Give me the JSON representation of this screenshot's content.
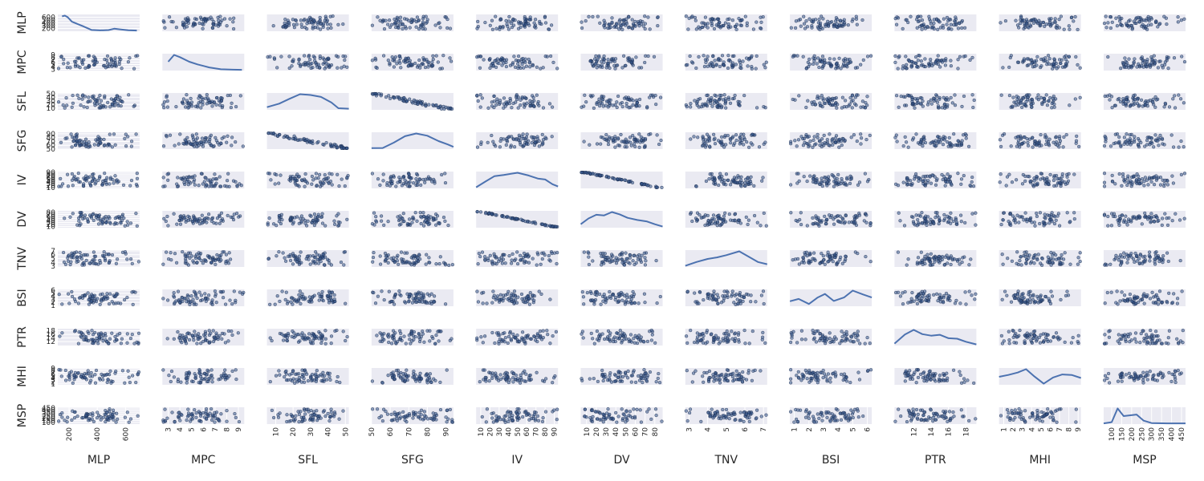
{
  "chart_data": {
    "type": "scatter",
    "kind": "scatter-matrix",
    "diagonal": "kde",
    "grid": true,
    "variables": [
      {
        "name": "MLP",
        "ylim": [
          100,
          700
        ],
        "yticks": [
          200,
          300,
          400,
          500,
          600
        ],
        "xlim": [
          120,
          700
        ],
        "xticks": [
          200,
          400,
          600
        ]
      },
      {
        "name": "MPC",
        "ylim": [
          2.5,
          9.5
        ],
        "yticks": [
          3,
          4,
          5,
          6,
          7,
          8,
          9
        ],
        "xlim": [
          2.5,
          9.5
        ],
        "xticks": [
          3,
          4,
          5,
          6,
          7,
          8,
          9
        ]
      },
      {
        "name": "SFL",
        "ylim": [
          5,
          52
        ],
        "yticks": [
          10,
          20,
          30,
          40,
          50
        ],
        "xlim": [
          5,
          52
        ],
        "xticks": [
          10,
          20,
          30,
          40,
          50
        ]
      },
      {
        "name": "SFG",
        "ylim": [
          50,
          94
        ],
        "yticks": [
          50,
          60,
          70,
          80,
          90
        ],
        "xlim": [
          50,
          94
        ],
        "xticks": [
          50,
          60,
          70,
          80,
          90
        ]
      },
      {
        "name": "IV",
        "ylim": [
          5,
          94
        ],
        "yticks": [
          10,
          20,
          30,
          40,
          50,
          60,
          70,
          80,
          90
        ],
        "xlim": [
          5,
          94
        ],
        "xticks": [
          10,
          20,
          30,
          40,
          50,
          60,
          70,
          80,
          90
        ]
      },
      {
        "name": "DV",
        "ylim": [
          4,
          88
        ],
        "yticks": [
          10,
          20,
          30,
          40,
          50,
          60,
          70,
          80
        ],
        "xlim": [
          4,
          88
        ],
        "xticks": [
          10,
          20,
          30,
          40,
          50,
          60,
          70,
          80
        ]
      },
      {
        "name": "TNV",
        "ylim": [
          2.8,
          7.2
        ],
        "yticks": [
          3,
          4,
          5,
          6,
          7
        ],
        "xlim": [
          2.8,
          7.2
        ],
        "xticks": [
          3,
          4,
          5,
          6,
          7
        ]
      },
      {
        "name": "BSI",
        "ylim": [
          0.7,
          6.3
        ],
        "yticks": [
          1,
          2,
          3,
          4,
          5,
          6
        ],
        "xlim": [
          0.7,
          6.3
        ],
        "xticks": [
          1,
          2,
          3,
          4,
          5,
          6
        ]
      },
      {
        "name": "PTR",
        "ylim": [
          9.8,
          19.2
        ],
        "yticks": [
          12,
          14,
          16,
          18
        ],
        "xlim": [
          9.8,
          19.2
        ],
        "xticks": [
          12,
          14,
          16,
          18
        ]
      },
      {
        "name": "MHI",
        "ylim": [
          0.5,
          9.3
        ],
        "yticks": [
          1,
          2,
          3,
          4,
          5,
          6,
          7,
          8,
          9
        ],
        "xlim": [
          0.5,
          9.3
        ],
        "xticks": [
          1,
          2,
          3,
          4,
          5,
          6,
          7,
          8,
          9
        ]
      },
      {
        "name": "MSP",
        "ylim": [
          60,
          470
        ],
        "yticks": [
          100,
          150,
          200,
          250,
          300,
          350,
          400,
          450
        ],
        "xlim": [
          60,
          470
        ],
        "xticks": [
          100,
          150,
          200,
          250,
          300,
          350,
          400,
          450
        ]
      }
    ],
    "kde_profiles": {
      "MLP": [
        [
          150,
          0.95
        ],
        [
          170,
          1.0
        ],
        [
          190,
          0.9
        ],
        [
          220,
          0.6
        ],
        [
          260,
          0.45
        ],
        [
          300,
          0.3
        ],
        [
          360,
          0.06
        ],
        [
          420,
          0.03
        ],
        [
          480,
          0.05
        ],
        [
          520,
          0.14
        ],
        [
          560,
          0.1
        ],
        [
          620,
          0.04
        ],
        [
          680,
          0.02
        ]
      ],
      "MPC": [
        [
          3.0,
          0.55
        ],
        [
          3.5,
          1.0
        ],
        [
          4.0,
          0.85
        ],
        [
          4.8,
          0.55
        ],
        [
          5.5,
          0.38
        ],
        [
          6.5,
          0.18
        ],
        [
          7.5,
          0.06
        ],
        [
          8.5,
          0.03
        ],
        [
          9.3,
          0.02
        ]
      ],
      "SFL": [
        [
          5,
          0.15
        ],
        [
          12,
          0.38
        ],
        [
          18,
          0.7
        ],
        [
          24,
          1.0
        ],
        [
          30,
          0.95
        ],
        [
          36,
          0.82
        ],
        [
          42,
          0.45
        ],
        [
          46,
          0.08
        ],
        [
          52,
          0.05
        ]
      ],
      "SFG": [
        [
          50,
          0.04
        ],
        [
          56,
          0.05
        ],
        [
          62,
          0.4
        ],
        [
          68,
          0.82
        ],
        [
          74,
          1.0
        ],
        [
          80,
          0.85
        ],
        [
          86,
          0.5
        ],
        [
          91,
          0.28
        ],
        [
          94,
          0.12
        ]
      ],
      "IV": [
        [
          5,
          0.05
        ],
        [
          15,
          0.42
        ],
        [
          25,
          0.78
        ],
        [
          35,
          0.86
        ],
        [
          50,
          1.0
        ],
        [
          62,
          0.82
        ],
        [
          72,
          0.62
        ],
        [
          80,
          0.56
        ],
        [
          88,
          0.25
        ],
        [
          94,
          0.1
        ]
      ],
      "DV": [
        [
          4,
          0.2
        ],
        [
          12,
          0.58
        ],
        [
          20,
          0.82
        ],
        [
          28,
          0.78
        ],
        [
          36,
          1.0
        ],
        [
          44,
          0.85
        ],
        [
          52,
          0.62
        ],
        [
          62,
          0.48
        ],
        [
          72,
          0.38
        ],
        [
          80,
          0.2
        ],
        [
          88,
          0.05
        ]
      ],
      "TNV": [
        [
          2.8,
          0.05
        ],
        [
          3.4,
          0.3
        ],
        [
          4.0,
          0.5
        ],
        [
          4.5,
          0.6
        ],
        [
          5.0,
          0.75
        ],
        [
          5.7,
          1.0
        ],
        [
          6.2,
          0.65
        ],
        [
          6.7,
          0.3
        ],
        [
          7.2,
          0.15
        ]
      ],
      "BSI": [
        [
          0.7,
          0.3
        ],
        [
          1.3,
          0.45
        ],
        [
          2.0,
          0.12
        ],
        [
          2.6,
          0.55
        ],
        [
          3.1,
          0.78
        ],
        [
          3.7,
          0.32
        ],
        [
          4.4,
          0.55
        ],
        [
          5.0,
          1.0
        ],
        [
          5.7,
          0.75
        ],
        [
          6.3,
          0.55
        ]
      ],
      "PTR": [
        [
          9.8,
          0.1
        ],
        [
          11.0,
          0.7
        ],
        [
          12.0,
          1.0
        ],
        [
          13.0,
          0.72
        ],
        [
          14.0,
          0.62
        ],
        [
          15.0,
          0.68
        ],
        [
          16.0,
          0.45
        ],
        [
          17.0,
          0.42
        ],
        [
          18.0,
          0.22
        ],
        [
          19.2,
          0.05
        ]
      ],
      "MHI": [
        [
          0.5,
          0.5
        ],
        [
          1.5,
          0.62
        ],
        [
          2.5,
          0.78
        ],
        [
          3.4,
          1.0
        ],
        [
          4.3,
          0.52
        ],
        [
          5.3,
          0.05
        ],
        [
          6.3,
          0.45
        ],
        [
          7.3,
          0.65
        ],
        [
          8.3,
          0.62
        ],
        [
          9.3,
          0.42
        ]
      ],
      "MSP": [
        [
          60,
          0.02
        ],
        [
          100,
          0.1
        ],
        [
          130,
          1.0
        ],
        [
          160,
          0.5
        ],
        [
          195,
          0.55
        ],
        [
          225,
          0.6
        ],
        [
          260,
          0.2
        ],
        [
          300,
          0.04
        ],
        [
          380,
          0.02
        ],
        [
          470,
          0.02
        ]
      ]
    }
  }
}
